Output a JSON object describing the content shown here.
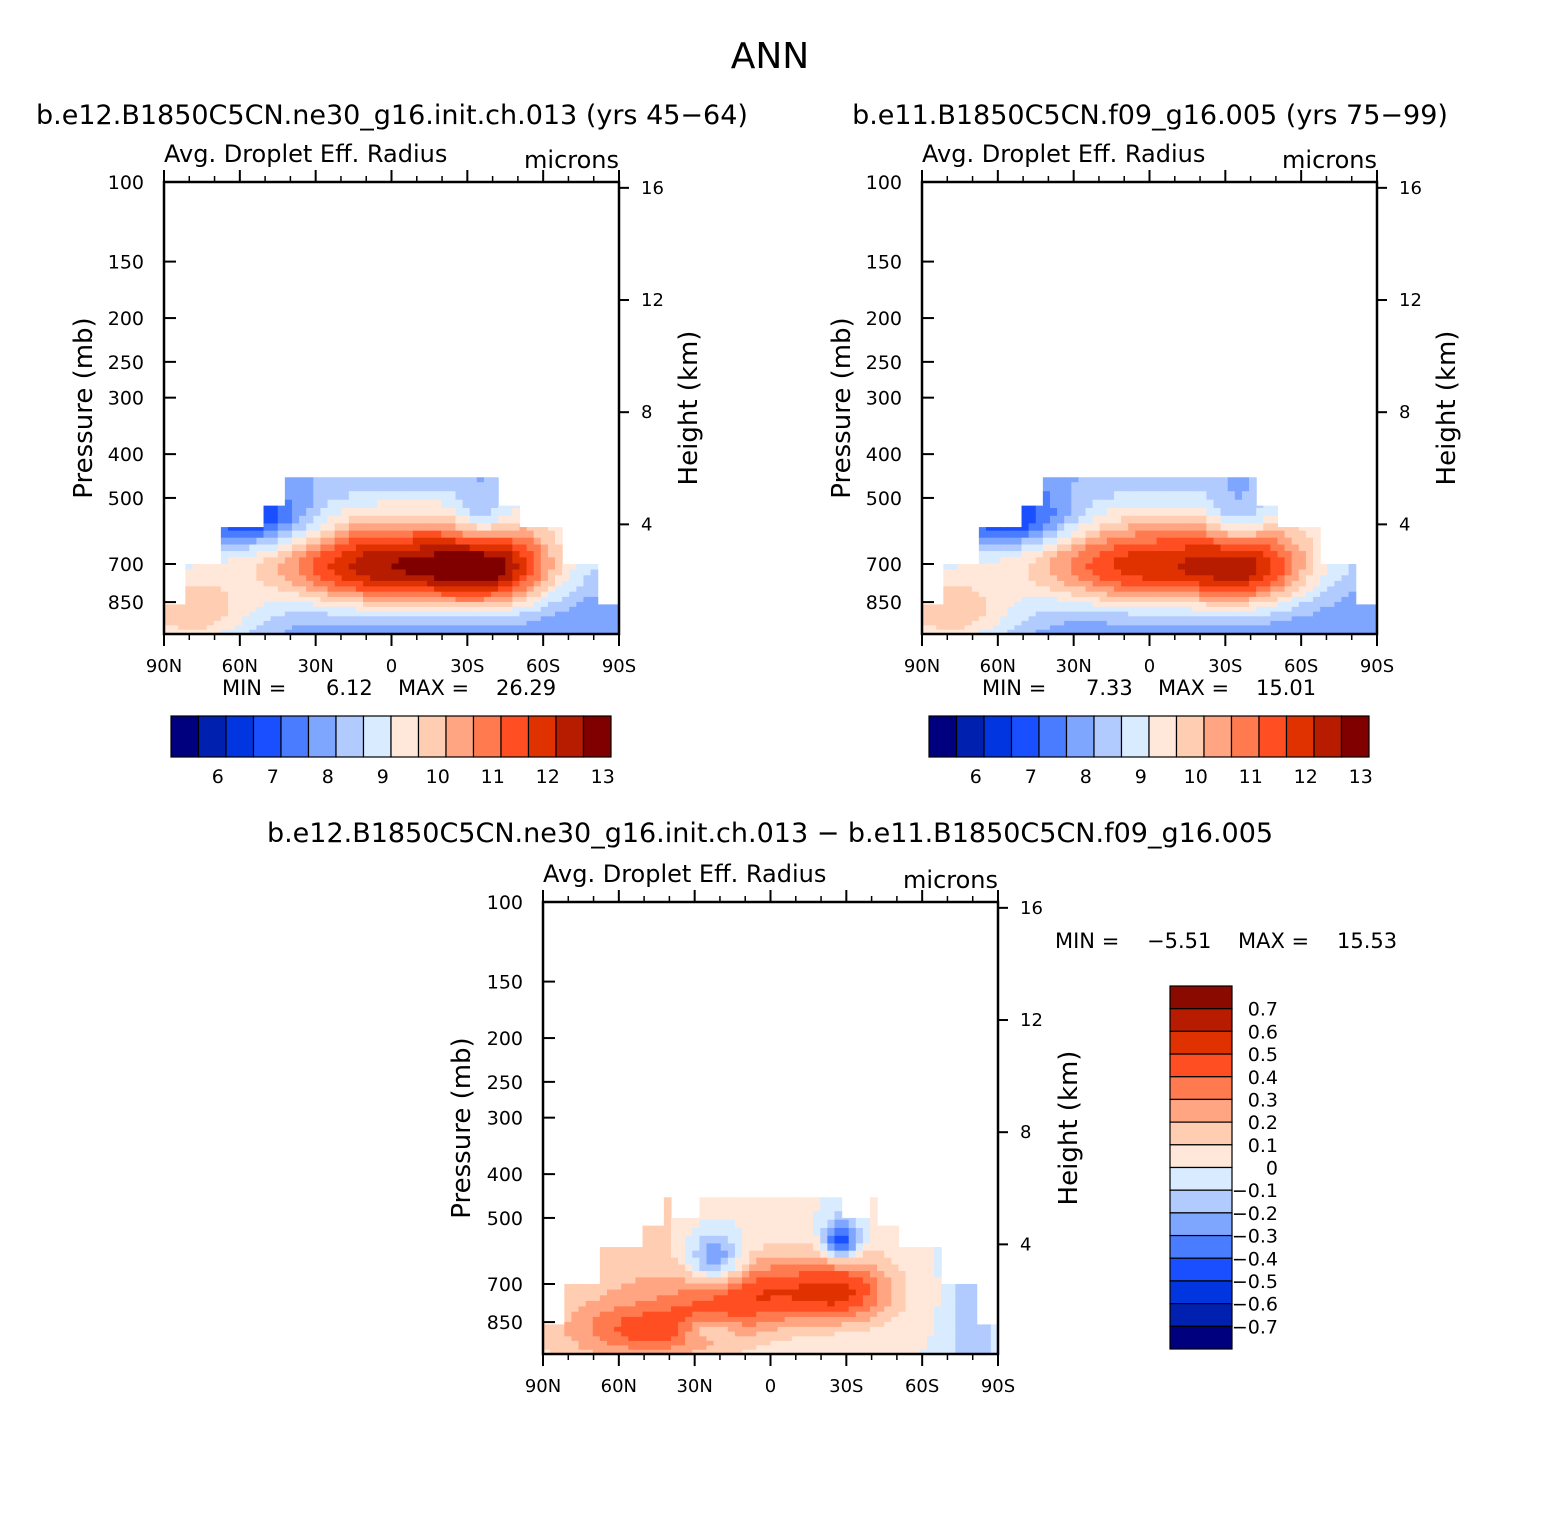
{
  "figure_title": "ANN",
  "colors": {
    "seq_palette": [
      "#00007f",
      "#0020b0",
      "#0035e0",
      "#1a4fff",
      "#4a7cff",
      "#7fa6ff",
      "#b2cbff",
      "#d9ebff",
      "#ffe8d9",
      "#ffcdb2",
      "#ffa582",
      "#ff7a4f",
      "#ff4e22",
      "#e03200",
      "#b71c00",
      "#800000"
    ],
    "diff_palette_bottom_to_top": [
      "#00007f",
      "#0020b0",
      "#0035e0",
      "#1a4fff",
      "#4a7cff",
      "#7fa6ff",
      "#b2cbff",
      "#d9ebff",
      "#ffe8d9",
      "#ffcdb2",
      "#ffa582",
      "#ff7a4f",
      "#ff4e22",
      "#e03200",
      "#b71c00",
      "#8b0a00"
    ]
  },
  "chart_data": [
    {
      "type": "heatmap",
      "panel": "top-left",
      "title": "b.e12.B1850C5CN.ne30_g16.init.ch.013 (yrs 45−64)",
      "left_string": "Avg. Droplet Eff. Radius",
      "right_string": "microns",
      "ylabel": "Pressure (mb)",
      "ylabel_right": "Height (km)",
      "x_ticks": [
        "90N",
        "60N",
        "30N",
        "0",
        "30S",
        "60S",
        "90S"
      ],
      "y_ticks": [
        "100",
        "150",
        "200",
        "250",
        "300",
        "400",
        "500",
        "700",
        "850"
      ],
      "y_right_ticks": [
        "16",
        "12",
        "8",
        "4"
      ],
      "min_label": "MIN =",
      "min_value": "6.12",
      "max_label": "MAX =",
      "max_value": "26.29",
      "colorbar_labels": [
        "6",
        "7",
        "8",
        "9",
        "10",
        "11",
        "12",
        "13"
      ]
    },
    {
      "type": "heatmap",
      "panel": "top-right",
      "title": "b.e11.B1850C5CN.f09_g16.005 (yrs 75−99)",
      "left_string": "Avg. Droplet Eff. Radius",
      "right_string": "microns",
      "ylabel": "Pressure (mb)",
      "ylabel_right": "Height (km)",
      "x_ticks": [
        "90N",
        "60N",
        "30N",
        "0",
        "30S",
        "60S",
        "90S"
      ],
      "y_ticks": [
        "100",
        "150",
        "200",
        "250",
        "300",
        "400",
        "500",
        "700",
        "850"
      ],
      "y_right_ticks": [
        "16",
        "12",
        "8",
        "4"
      ],
      "min_label": "MIN =",
      "min_value": "7.33",
      "max_label": "MAX =",
      "max_value": "15.01",
      "colorbar_labels": [
        "6",
        "7",
        "8",
        "9",
        "10",
        "11",
        "12",
        "13"
      ]
    },
    {
      "type": "heatmap",
      "panel": "bottom",
      "title": "b.e12.B1850C5CN.ne30_g16.init.ch.013 − b.e11.B1850C5CN.f09_g16.005",
      "left_string": "Avg. Droplet Eff. Radius",
      "right_string": "microns",
      "ylabel": "Pressure (mb)",
      "ylabel_right": "Height (km)",
      "x_ticks": [
        "90N",
        "60N",
        "30N",
        "0",
        "30S",
        "60S",
        "90S"
      ],
      "y_ticks": [
        "100",
        "150",
        "200",
        "250",
        "300",
        "400",
        "500",
        "700",
        "850"
      ],
      "y_right_ticks": [
        "16",
        "12",
        "8",
        "4"
      ],
      "min_label": "MIN =",
      "min_value": "−5.51",
      "max_label": "MAX =",
      "max_value": "15.53",
      "colorbar_labels": [
        "0.7",
        "0.6",
        "0.5",
        "0.4",
        "0.3",
        "0.2",
        "0.1",
        "0",
        "−0.1",
        "−0.2",
        "−0.3",
        "−0.4",
        "−0.5",
        "−0.6",
        "−0.7"
      ]
    }
  ]
}
